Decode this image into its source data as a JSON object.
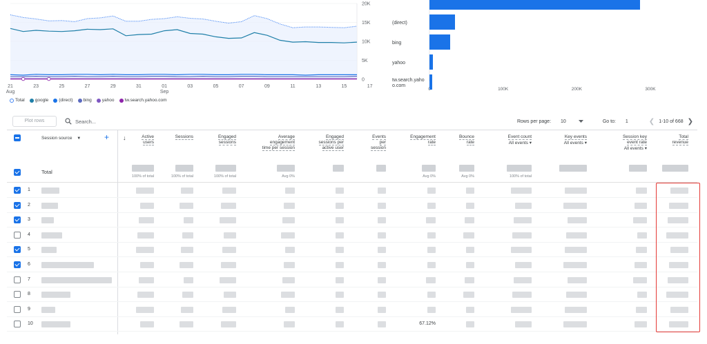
{
  "chart_data": [
    {
      "type": "line",
      "x": [
        "21 Aug",
        "22",
        "23",
        "24",
        "25",
        "26",
        "27",
        "28",
        "29",
        "30",
        "31",
        "01 Sep",
        "02",
        "03",
        "04",
        "05",
        "06",
        "07",
        "08",
        "09",
        "10",
        "11",
        "12",
        "13",
        "14",
        "15",
        "16",
        "17"
      ],
      "x_tick_labels": [
        {
          "label": "21",
          "sub": "Aug"
        },
        {
          "label": "23",
          "sub": ""
        },
        {
          "label": "25",
          "sub": ""
        },
        {
          "label": "27",
          "sub": ""
        },
        {
          "label": "29",
          "sub": ""
        },
        {
          "label": "31",
          "sub": ""
        },
        {
          "label": "01",
          "sub": "Sep"
        },
        {
          "label": "03",
          "sub": ""
        },
        {
          "label": "05",
          "sub": ""
        },
        {
          "label": "07",
          "sub": ""
        },
        {
          "label": "09",
          "sub": ""
        },
        {
          "label": "11",
          "sub": ""
        },
        {
          "label": "13",
          "sub": ""
        },
        {
          "label": "15",
          "sub": ""
        },
        {
          "label": "17",
          "sub": ""
        }
      ],
      "y_tick_labels": [
        "20K",
        "15K",
        "10K",
        "5K",
        "0"
      ],
      "ylim": [
        0,
        20000
      ],
      "grid": true,
      "series": [
        {
          "name": "Total",
          "color": "#4285f4",
          "style": "dotted",
          "values": [
            17000,
            16300,
            15900,
            15400,
            15500,
            15200,
            16000,
            16200,
            16700,
            15300,
            15300,
            15800,
            16000,
            16500,
            16100,
            15900,
            15300,
            14800,
            15200,
            16800,
            16000,
            14600,
            13600,
            13800,
            13800,
            13700,
            13600,
            14000
          ]
        },
        {
          "name": "google",
          "color": "#1e7fa8",
          "style": "solid",
          "values": [
            13400,
            12600,
            12900,
            12700,
            12600,
            12800,
            13200,
            13100,
            13300,
            11500,
            11800,
            11900,
            12800,
            13100,
            12100,
            11900,
            11200,
            10800,
            10900,
            12300,
            11600,
            10300,
            9800,
            9900,
            9700,
            9700,
            9600,
            9800
          ]
        },
        {
          "name": "(direct)",
          "color": "#1a73e8",
          "style": "solid",
          "values": [
            1200,
            1100,
            1300,
            1200,
            1200,
            1300,
            1300,
            1200,
            1300,
            1200,
            1200,
            1300,
            1300,
            1200,
            1300,
            1300,
            1200,
            1200,
            1300,
            1300,
            1200,
            1200,
            1200,
            1100,
            1200,
            1200,
            1200,
            1200
          ]
        },
        {
          "name": "bing",
          "color": "#5c6bc0",
          "style": "solid",
          "values": [
            700,
            700,
            800,
            700,
            700,
            800,
            700,
            700,
            800,
            700,
            700,
            800,
            800,
            700,
            700,
            800,
            700,
            700,
            800,
            800,
            700,
            700,
            700,
            700,
            700,
            700,
            700,
            800
          ]
        },
        {
          "name": "yahoo",
          "color": "#7e57c2",
          "style": "solid",
          "values": [
            150,
            150,
            150,
            150,
            150,
            150,
            150,
            150,
            150,
            150,
            150,
            150,
            150,
            150,
            150,
            150,
            150,
            150,
            150,
            150,
            150,
            150,
            150,
            150,
            150,
            150,
            150,
            150
          ]
        },
        {
          "name": "tw.search.yahoo.com",
          "color": "#8e24aa",
          "style": "solid",
          "values": [
            80,
            80,
            80,
            80,
            80,
            80,
            80,
            80,
            80,
            80,
            80,
            80,
            80,
            80,
            80,
            80,
            80,
            80,
            80,
            80,
            80,
            80,
            80,
            80,
            80,
            80,
            80,
            80
          ]
        }
      ]
    },
    {
      "type": "bar",
      "orientation": "horizontal",
      "categories": [
        "",
        "(direct)",
        "bing",
        "yahoo",
        "tw.search.yahoo.com"
      ],
      "category_labels": [
        [
          ""
        ],
        [
          "(direct)"
        ],
        [
          "bing"
        ],
        [
          "yahoo"
        ],
        [
          "tw.search.yaho",
          "o.com"
        ]
      ],
      "values": [
        305000,
        37000,
        30000,
        5000,
        4000
      ],
      "xlim": [
        0,
        320000
      ],
      "x_tick_labels": [
        "0",
        "100K",
        "200K",
        "300K"
      ],
      "color": "#1a73e8"
    }
  ],
  "legend": [
    {
      "name": "Total",
      "color": "#4285f4",
      "hollow": true
    },
    {
      "name": "google",
      "color": "#1e7fa8",
      "hollow": false
    },
    {
      "name": "(direct)",
      "color": "#1a73e8",
      "hollow": false
    },
    {
      "name": "bing",
      "color": "#5c6bc0",
      "hollow": false
    },
    {
      "name": "yahoo",
      "color": "#7e57c2",
      "hollow": false
    },
    {
      "name": "tw.search.yahoo.com",
      "color": "#8e24aa",
      "hollow": false
    }
  ],
  "toolbar": {
    "plot_rows_label": "Plot rows",
    "search_placeholder": "Search...",
    "rows_per_page_label": "Rows per page:",
    "rows_per_page_value": "10",
    "goto_label": "Go to:",
    "goto_value": "1",
    "range_label": "1-10 of 668"
  },
  "table": {
    "dimension_label": "Session source",
    "total_label": "Total",
    "columns": [
      {
        "key": "active_users",
        "lines": [
          "Active",
          "users"
        ],
        "sub": "",
        "right": 213,
        "total_sub": "100% of total"
      },
      {
        "key": "sessions",
        "lines": [
          "Sessions"
        ],
        "sub": "",
        "right": 270,
        "total_sub": "100% of total"
      },
      {
        "key": "engaged_sessions",
        "lines": [
          "Engaged",
          "sessions"
        ],
        "sub": "",
        "right": 332,
        "total_sub": "100% of total"
      },
      {
        "key": "avg_engagement_time",
        "lines": [
          "Average",
          "engagement",
          "time per session"
        ],
        "sub": "",
        "right": 417,
        "total_sub": "Avg 0%"
      },
      {
        "key": "engaged_sessions_per_user",
        "lines": [
          "Engaged",
          "sessions per",
          "active user"
        ],
        "sub": "",
        "right": 488,
        "total_sub": ""
      },
      {
        "key": "events_per_session",
        "lines": [
          "Events",
          "per",
          "session"
        ],
        "sub": "",
        "right": 549,
        "total_sub": ""
      },
      {
        "key": "engagement_rate",
        "lines": [
          "Engagement",
          "rate"
        ],
        "sub": "",
        "right": 621,
        "total_sub": "Avg 0%"
      },
      {
        "key": "bounce_rate",
        "lines": [
          "Bounce",
          "rate"
        ],
        "sub": "",
        "right": 677,
        "total_sub": "Avg 0%"
      },
      {
        "key": "event_count",
        "lines": [
          "Event count"
        ],
        "sub": "All events",
        "right": 760,
        "total_sub": "100% of total"
      },
      {
        "key": "key_events",
        "lines": [
          "Key events"
        ],
        "sub": "All events",
        "right": 840,
        "total_sub": ""
      },
      {
        "key": "session_key_event_rate",
        "lines": [
          "Session key",
          "event rate"
        ],
        "sub": "All events",
        "right": 927,
        "total_sub": ""
      },
      {
        "key": "total_revenue",
        "lines": [
          "Total",
          "revenue"
        ],
        "sub": "",
        "right": 987,
        "total_sub": ""
      }
    ],
    "rows": [
      {
        "num": "1",
        "checked": true,
        "visible_text": {}
      },
      {
        "num": "2",
        "checked": true,
        "visible_text": {}
      },
      {
        "num": "3",
        "checked": true,
        "visible_text": {}
      },
      {
        "num": "4",
        "checked": false,
        "visible_text": {}
      },
      {
        "num": "5",
        "checked": true,
        "visible_text": {}
      },
      {
        "num": "6",
        "checked": true,
        "visible_text": {}
      },
      {
        "num": "7",
        "checked": false,
        "visible_text": {}
      },
      {
        "num": "8",
        "checked": false,
        "visible_text": {}
      },
      {
        "num": "9",
        "checked": false,
        "visible_text": {}
      },
      {
        "num": "10",
        "checked": false,
        "visible_text": {
          "engagement_rate": "67.12%"
        }
      }
    ]
  }
}
